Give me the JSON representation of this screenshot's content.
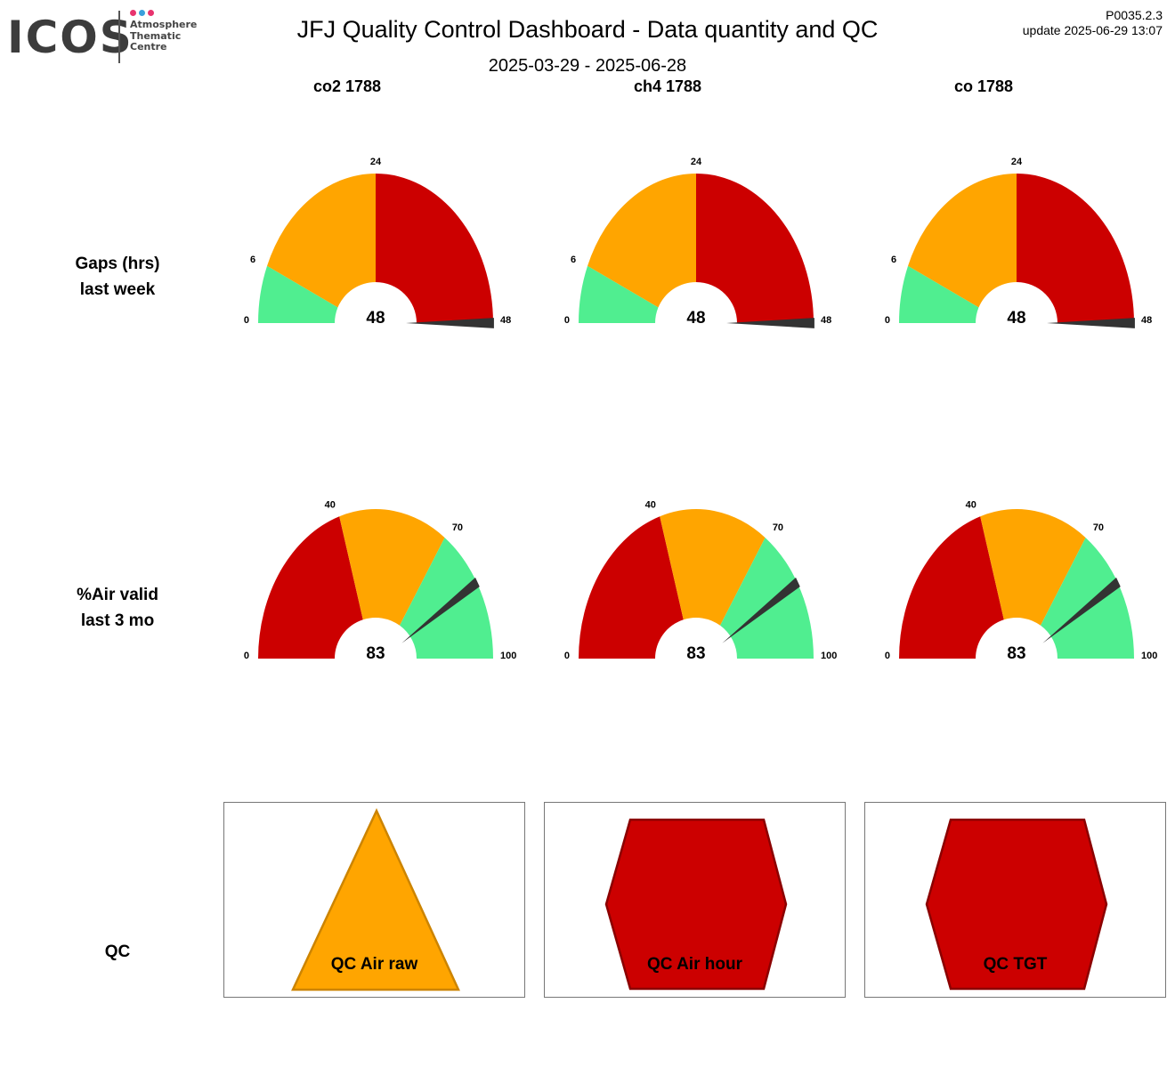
{
  "logo": {
    "text": "ICOS",
    "subtitle": [
      "Atmosphere",
      "Thematic",
      "Centre"
    ],
    "dot_colors": [
      "#e8336e",
      "#3aa0dc",
      "#e8336e"
    ]
  },
  "header": {
    "title": "JFJ  Quality Control Dashboard - Data quantity and QC",
    "date_range": "2025-03-29 - 2025-06-28",
    "version": "P0035.2.3",
    "update": "update  2025-06-29 13:07"
  },
  "columns": [
    "co2 1788",
    "ch4 1788",
    "co 1788"
  ],
  "rows": {
    "gaps": [
      "Gaps (hrs)",
      "last week"
    ],
    "air_valid": [
      "%Air valid",
      "last 3 mo"
    ],
    "qc": "QC"
  },
  "colors": {
    "red": "#cc0000",
    "orange": "#ffa500",
    "green": "#50ee90",
    "needle": "#333333"
  },
  "chart_data": [
    {
      "type": "gauge",
      "title": "Gaps (hrs) last week",
      "min": 0,
      "max": 48,
      "ticks": [
        0,
        6,
        24,
        48
      ],
      "bands": [
        {
          "from": 0,
          "to": 6,
          "color": "green"
        },
        {
          "from": 6,
          "to": 24,
          "color": "orange"
        },
        {
          "from": 24,
          "to": 48,
          "color": "red"
        }
      ],
      "series": [
        {
          "name": "co2 1788",
          "value": 48
        },
        {
          "name": "ch4 1788",
          "value": 48
        },
        {
          "name": "co 1788",
          "value": 48
        }
      ]
    },
    {
      "type": "gauge",
      "title": "%Air valid last 3 mo",
      "min": 0,
      "max": 100,
      "ticks": [
        0,
        40,
        70,
        100
      ],
      "bands": [
        {
          "from": 0,
          "to": 40,
          "color": "red"
        },
        {
          "from": 40,
          "to": 70,
          "color": "orange"
        },
        {
          "from": 70,
          "to": 100,
          "color": "green"
        }
      ],
      "series": [
        {
          "name": "co2 1788",
          "value": 83
        },
        {
          "name": "ch4 1788",
          "value": 83
        },
        {
          "name": "co 1788",
          "value": 83
        }
      ]
    }
  ],
  "qc_indicators": [
    {
      "label": "QC Air raw",
      "shape": "triangle",
      "status": "orange"
    },
    {
      "label": "QC Air hour",
      "shape": "hexagon",
      "status": "red"
    },
    {
      "label": "QC TGT",
      "shape": "hexagon",
      "status": "red"
    }
  ]
}
